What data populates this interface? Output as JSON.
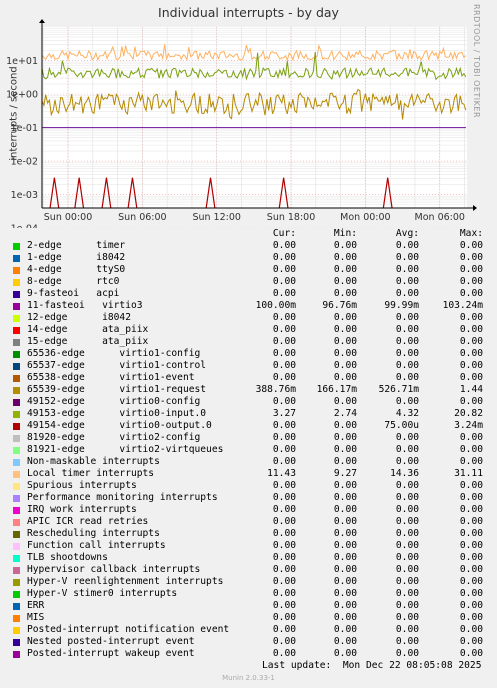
{
  "title": "Individual interrupts - by day",
  "ylabel": "interrupts / second",
  "side_text": "RRDTOOL / TOBI OETIKER",
  "columns": {
    "cur": "Cur:",
    "min": "Min:",
    "avg": "Avg:",
    "max": "Max:"
  },
  "last_update": "Last update:  Mon Dec 22 08:05:08 2025",
  "footer": "Munin 2.0.33-1",
  "chart_data": {
    "type": "line",
    "yscale": "log",
    "ylim": [
      0.0004,
      100
    ],
    "yticks": [
      "1e-04",
      "1e-03",
      "1e-02",
      "1e-01",
      "1e+00",
      "1e+01"
    ],
    "ytick_values": [
      0.0001,
      0.001,
      0.01,
      0.1,
      1,
      10
    ],
    "xticks": [
      "Sun 00:00",
      "Sun 06:00",
      "Sun 12:00",
      "Sun 18:00",
      "Mon 00:00",
      "Mon 06:00"
    ],
    "xtick_hours": [
      0,
      6,
      12,
      18,
      24,
      30
    ],
    "xlim_hours": [
      -2.1,
      32.2
    ],
    "grid": true,
    "series_levels": [
      {
        "name": "Local timer interrupts",
        "color": "#ffb060",
        "level": 14.36,
        "min": 9.27,
        "max": 31.11
      },
      {
        "name": "49153-edge",
        "color": "#7aa010",
        "level": 4.32,
        "min": 2.74,
        "max": 20.82
      },
      {
        "name": "65539-edge",
        "color": "#b58900",
        "level": 0.527,
        "min": 0.166,
        "max": 1.44
      },
      {
        "name": "11-fasteoi",
        "color": "#6a0fa0",
        "level": 0.09999,
        "min": 0.09676,
        "max": 0.10324
      }
    ],
    "spike_series": {
      "name": "49154-edge",
      "color": "#b00000",
      "hours": [
        -1.1,
        0.9,
        3.1,
        5.2,
        11.5,
        17.4,
        25.8
      ],
      "peak": 0.0032
    }
  },
  "legend": [
    {
      "color": "#00cc00",
      "label": "2-edge      timer",
      "cur": "0.00",
      "min": "0.00",
      "avg": "0.00",
      "max": "0.00"
    },
    {
      "color": "#0066b3",
      "label": "1-edge      i8042",
      "cur": "0.00",
      "min": "0.00",
      "avg": "0.00",
      "max": "0.00"
    },
    {
      "color": "#ff8000",
      "label": "4-edge      ttyS0",
      "cur": "0.00",
      "min": "0.00",
      "avg": "0.00",
      "max": "0.00"
    },
    {
      "color": "#ffcc00",
      "label": "8-edge      rtc0",
      "cur": "0.00",
      "min": "0.00",
      "avg": "0.00",
      "max": "0.00"
    },
    {
      "color": "#330099",
      "label": "9-fasteoi   acpi",
      "cur": "0.00",
      "min": "0.00",
      "avg": "0.00",
      "max": "0.00"
    },
    {
      "color": "#990099",
      "label": "11-fasteoi   virtio3",
      "cur": "100.00m",
      "min": "96.76m",
      "avg": "99.99m",
      "max": "103.24m"
    },
    {
      "color": "#ccff00",
      "label": "12-edge      i8042",
      "cur": "0.00",
      "min": "0.00",
      "avg": "0.00",
      "max": "0.00"
    },
    {
      "color": "#ff0000",
      "label": "14-edge      ata_piix",
      "cur": "0.00",
      "min": "0.00",
      "avg": "0.00",
      "max": "0.00"
    },
    {
      "color": "#808080",
      "label": "15-edge      ata_piix",
      "cur": "0.00",
      "min": "0.00",
      "avg": "0.00",
      "max": "0.00"
    },
    {
      "color": "#008f00",
      "label": "65536-edge      virtio1-config",
      "cur": "0.00",
      "min": "0.00",
      "avg": "0.00",
      "max": "0.00"
    },
    {
      "color": "#00487d",
      "label": "65537-edge      virtio1-control",
      "cur": "0.00",
      "min": "0.00",
      "avg": "0.00",
      "max": "0.00"
    },
    {
      "color": "#b35a00",
      "label": "65538-edge      virtio1-event",
      "cur": "0.00",
      "min": "0.00",
      "avg": "0.00",
      "max": "0.00"
    },
    {
      "color": "#b38f00",
      "label": "65539-edge      virtio1-request",
      "cur": "388.76m",
      "min": "166.17m",
      "avg": "526.71m",
      "max": "1.44"
    },
    {
      "color": "#6b006b",
      "label": "49152-edge      virtio0-config",
      "cur": "0.00",
      "min": "0.00",
      "avg": "0.00",
      "max": "0.00"
    },
    {
      "color": "#8fb300",
      "label": "49153-edge      virtio0-input.0",
      "cur": "3.27",
      "min": "2.74",
      "avg": "4.32",
      "max": "20.82"
    },
    {
      "color": "#b30000",
      "label": "49154-edge      virtio0-output.0",
      "cur": "0.00",
      "min": "0.00",
      "avg": "75.00u",
      "max": "3.24m"
    },
    {
      "color": "#bebebe",
      "label": "81920-edge      virtio2-config",
      "cur": "0.00",
      "min": "0.00",
      "avg": "0.00",
      "max": "0.00"
    },
    {
      "color": "#80ff80",
      "label": "81921-edge      virtio2-virtqueues",
      "cur": "0.00",
      "min": "0.00",
      "avg": "0.00",
      "max": "0.00"
    },
    {
      "color": "#80c9ff",
      "label": "Non-maskable interrupts",
      "cur": "0.00",
      "min": "0.00",
      "avg": "0.00",
      "max": "0.00"
    },
    {
      "color": "#ffc080",
      "label": "Local timer interrupts",
      "cur": "11.43",
      "min": "9.27",
      "avg": "14.36",
      "max": "31.11"
    },
    {
      "color": "#ffe680",
      "label": "Spurious interrupts",
      "cur": "0.00",
      "min": "0.00",
      "avg": "0.00",
      "max": "0.00"
    },
    {
      "color": "#aa80ff",
      "label": "Performance monitoring interrupts",
      "cur": "0.00",
      "min": "0.00",
      "avg": "0.00",
      "max": "0.00"
    },
    {
      "color": "#ee00cc",
      "label": "IRQ work interrupts",
      "cur": "0.00",
      "min": "0.00",
      "avg": "0.00",
      "max": "0.00"
    },
    {
      "color": "#ff8080",
      "label": "APIC ICR read retries",
      "cur": "0.00",
      "min": "0.00",
      "avg": "0.00",
      "max": "0.00"
    },
    {
      "color": "#666600",
      "label": "Rescheduling interrupts",
      "cur": "0.00",
      "min": "0.00",
      "avg": "0.00",
      "max": "0.00"
    },
    {
      "color": "#ffbfff",
      "label": "Function call interrupts",
      "cur": "0.00",
      "min": "0.00",
      "avg": "0.00",
      "max": "0.00"
    },
    {
      "color": "#00ffcc",
      "label": "TLB shootdowns",
      "cur": "0.00",
      "min": "0.00",
      "avg": "0.00",
      "max": "0.00"
    },
    {
      "color": "#cc6699",
      "label": "Hypervisor callback interrupts",
      "cur": "0.00",
      "min": "0.00",
      "avg": "0.00",
      "max": "0.00"
    },
    {
      "color": "#999900",
      "label": "Hyper-V reenlightenment interrupts",
      "cur": "0.00",
      "min": "0.00",
      "avg": "0.00",
      "max": "0.00"
    },
    {
      "color": "#00cc00",
      "label": "Hyper-V stimer0 interrupts",
      "cur": "0.00",
      "min": "0.00",
      "avg": "0.00",
      "max": "0.00"
    },
    {
      "color": "#0066b3",
      "label": "ERR",
      "cur": "0.00",
      "min": "0.00",
      "avg": "0.00",
      "max": "0.00"
    },
    {
      "color": "#ff8000",
      "label": "MIS",
      "cur": "0.00",
      "min": "0.00",
      "avg": "0.00",
      "max": "0.00"
    },
    {
      "color": "#ffcc00",
      "label": "Posted-interrupt notification event",
      "cur": "0.00",
      "min": "0.00",
      "avg": "0.00",
      "max": "0.00"
    },
    {
      "color": "#330099",
      "label": "Nested posted-interrupt event",
      "cur": "0.00",
      "min": "0.00",
      "avg": "0.00",
      "max": "0.00"
    },
    {
      "color": "#990099",
      "label": "Posted-interrupt wakeup event",
      "cur": "0.00",
      "min": "0.00",
      "avg": "0.00",
      "max": "0.00"
    }
  ]
}
